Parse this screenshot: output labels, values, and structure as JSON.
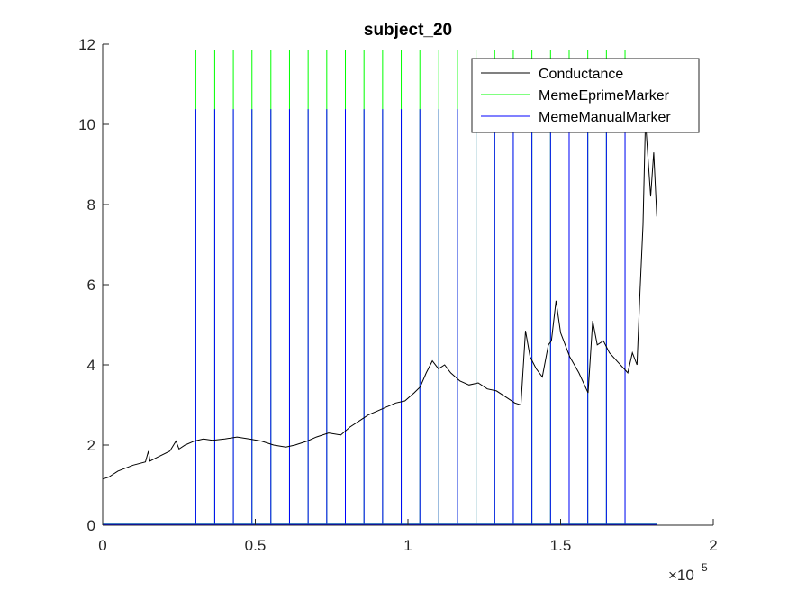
{
  "chart_data": {
    "type": "line",
    "title": "subject_20",
    "xlim": [
      0,
      200000
    ],
    "ylim": [
      0,
      12
    ],
    "x_ticks": [
      0,
      50000,
      100000,
      150000,
      200000
    ],
    "x_tick_labels": [
      "0",
      "0.5",
      "1",
      "1.5",
      "2"
    ],
    "y_ticks": [
      0,
      2,
      4,
      6,
      8,
      10,
      12
    ],
    "y_tick_labels": [
      "0",
      "2",
      "4",
      "6",
      "8",
      "10",
      "12"
    ],
    "x_exponent": {
      "base": "×10",
      "power": "5"
    },
    "legend_position": "top-right",
    "grid": false,
    "series": [
      {
        "name": "Conductance",
        "color": "#000000",
        "points": [
          [
            0,
            1.15
          ],
          [
            2000,
            1.2
          ],
          [
            5000,
            1.35
          ],
          [
            10000,
            1.5
          ],
          [
            14000,
            1.58
          ],
          [
            15000,
            1.85
          ],
          [
            15500,
            1.6
          ],
          [
            18000,
            1.7
          ],
          [
            22000,
            1.85
          ],
          [
            24000,
            2.1
          ],
          [
            25000,
            1.9
          ],
          [
            27000,
            2.0
          ],
          [
            30000,
            2.1
          ],
          [
            33000,
            2.15
          ],
          [
            36000,
            2.12
          ],
          [
            40000,
            2.15
          ],
          [
            44000,
            2.2
          ],
          [
            48000,
            2.15
          ],
          [
            52000,
            2.1
          ],
          [
            56000,
            2.0
          ],
          [
            60000,
            1.95
          ],
          [
            63000,
            2.0
          ],
          [
            67000,
            2.1
          ],
          [
            70000,
            2.2
          ],
          [
            74000,
            2.3
          ],
          [
            78000,
            2.25
          ],
          [
            81000,
            2.45
          ],
          [
            84000,
            2.6
          ],
          [
            87000,
            2.75
          ],
          [
            90000,
            2.85
          ],
          [
            93000,
            2.95
          ],
          [
            96000,
            3.05
          ],
          [
            99000,
            3.1
          ],
          [
            102000,
            3.3
          ],
          [
            104000,
            3.45
          ],
          [
            106000,
            3.8
          ],
          [
            108000,
            4.1
          ],
          [
            110000,
            3.9
          ],
          [
            112000,
            4.0
          ],
          [
            114000,
            3.8
          ],
          [
            117000,
            3.6
          ],
          [
            120000,
            3.5
          ],
          [
            123000,
            3.55
          ],
          [
            126000,
            3.4
          ],
          [
            129000,
            3.35
          ],
          [
            132000,
            3.2
          ],
          [
            135000,
            3.05
          ],
          [
            137000,
            3.0
          ],
          [
            138500,
            4.85
          ],
          [
            140000,
            4.2
          ],
          [
            142000,
            3.9
          ],
          [
            144000,
            3.7
          ],
          [
            146000,
            4.5
          ],
          [
            147000,
            4.6
          ],
          [
            148500,
            5.6
          ],
          [
            150000,
            4.8
          ],
          [
            153000,
            4.2
          ],
          [
            156000,
            3.8
          ],
          [
            159000,
            3.3
          ],
          [
            160500,
            5.1
          ],
          [
            162000,
            4.5
          ],
          [
            164000,
            4.6
          ],
          [
            166000,
            4.3
          ],
          [
            169000,
            4.05
          ],
          [
            172000,
            3.8
          ],
          [
            173500,
            4.3
          ],
          [
            175000,
            4.0
          ],
          [
            176000,
            5.8
          ],
          [
            177000,
            7.5
          ],
          [
            177800,
            10.1
          ],
          [
            178500,
            9.3
          ],
          [
            179500,
            8.2
          ],
          [
            180500,
            9.3
          ],
          [
            181500,
            7.7
          ]
        ]
      },
      {
        "name": "MemeEprimeMarker",
        "color": "#00ff00",
        "baseline": 0.05,
        "height": 11.85,
        "markers": [
          30500,
          36700,
          42800,
          48900,
          55100,
          61200,
          67300,
          73400,
          79500,
          85600,
          91700,
          97800,
          103900,
          110100,
          116200,
          122300,
          128400,
          134500,
          140600,
          146700,
          152800,
          158900,
          165000,
          171100
        ]
      },
      {
        "name": "MemeManualMarker",
        "color": "#0000ff",
        "baseline": 0.02,
        "height": 10.38,
        "markers": [
          30500,
          36700,
          42800,
          48900,
          55100,
          61200,
          67300,
          73400,
          79500,
          85600,
          91700,
          97800,
          103900,
          110100,
          116200,
          122300,
          128400,
          134500,
          140600,
          146700,
          152800,
          158900,
          165000,
          171100
        ]
      }
    ]
  }
}
